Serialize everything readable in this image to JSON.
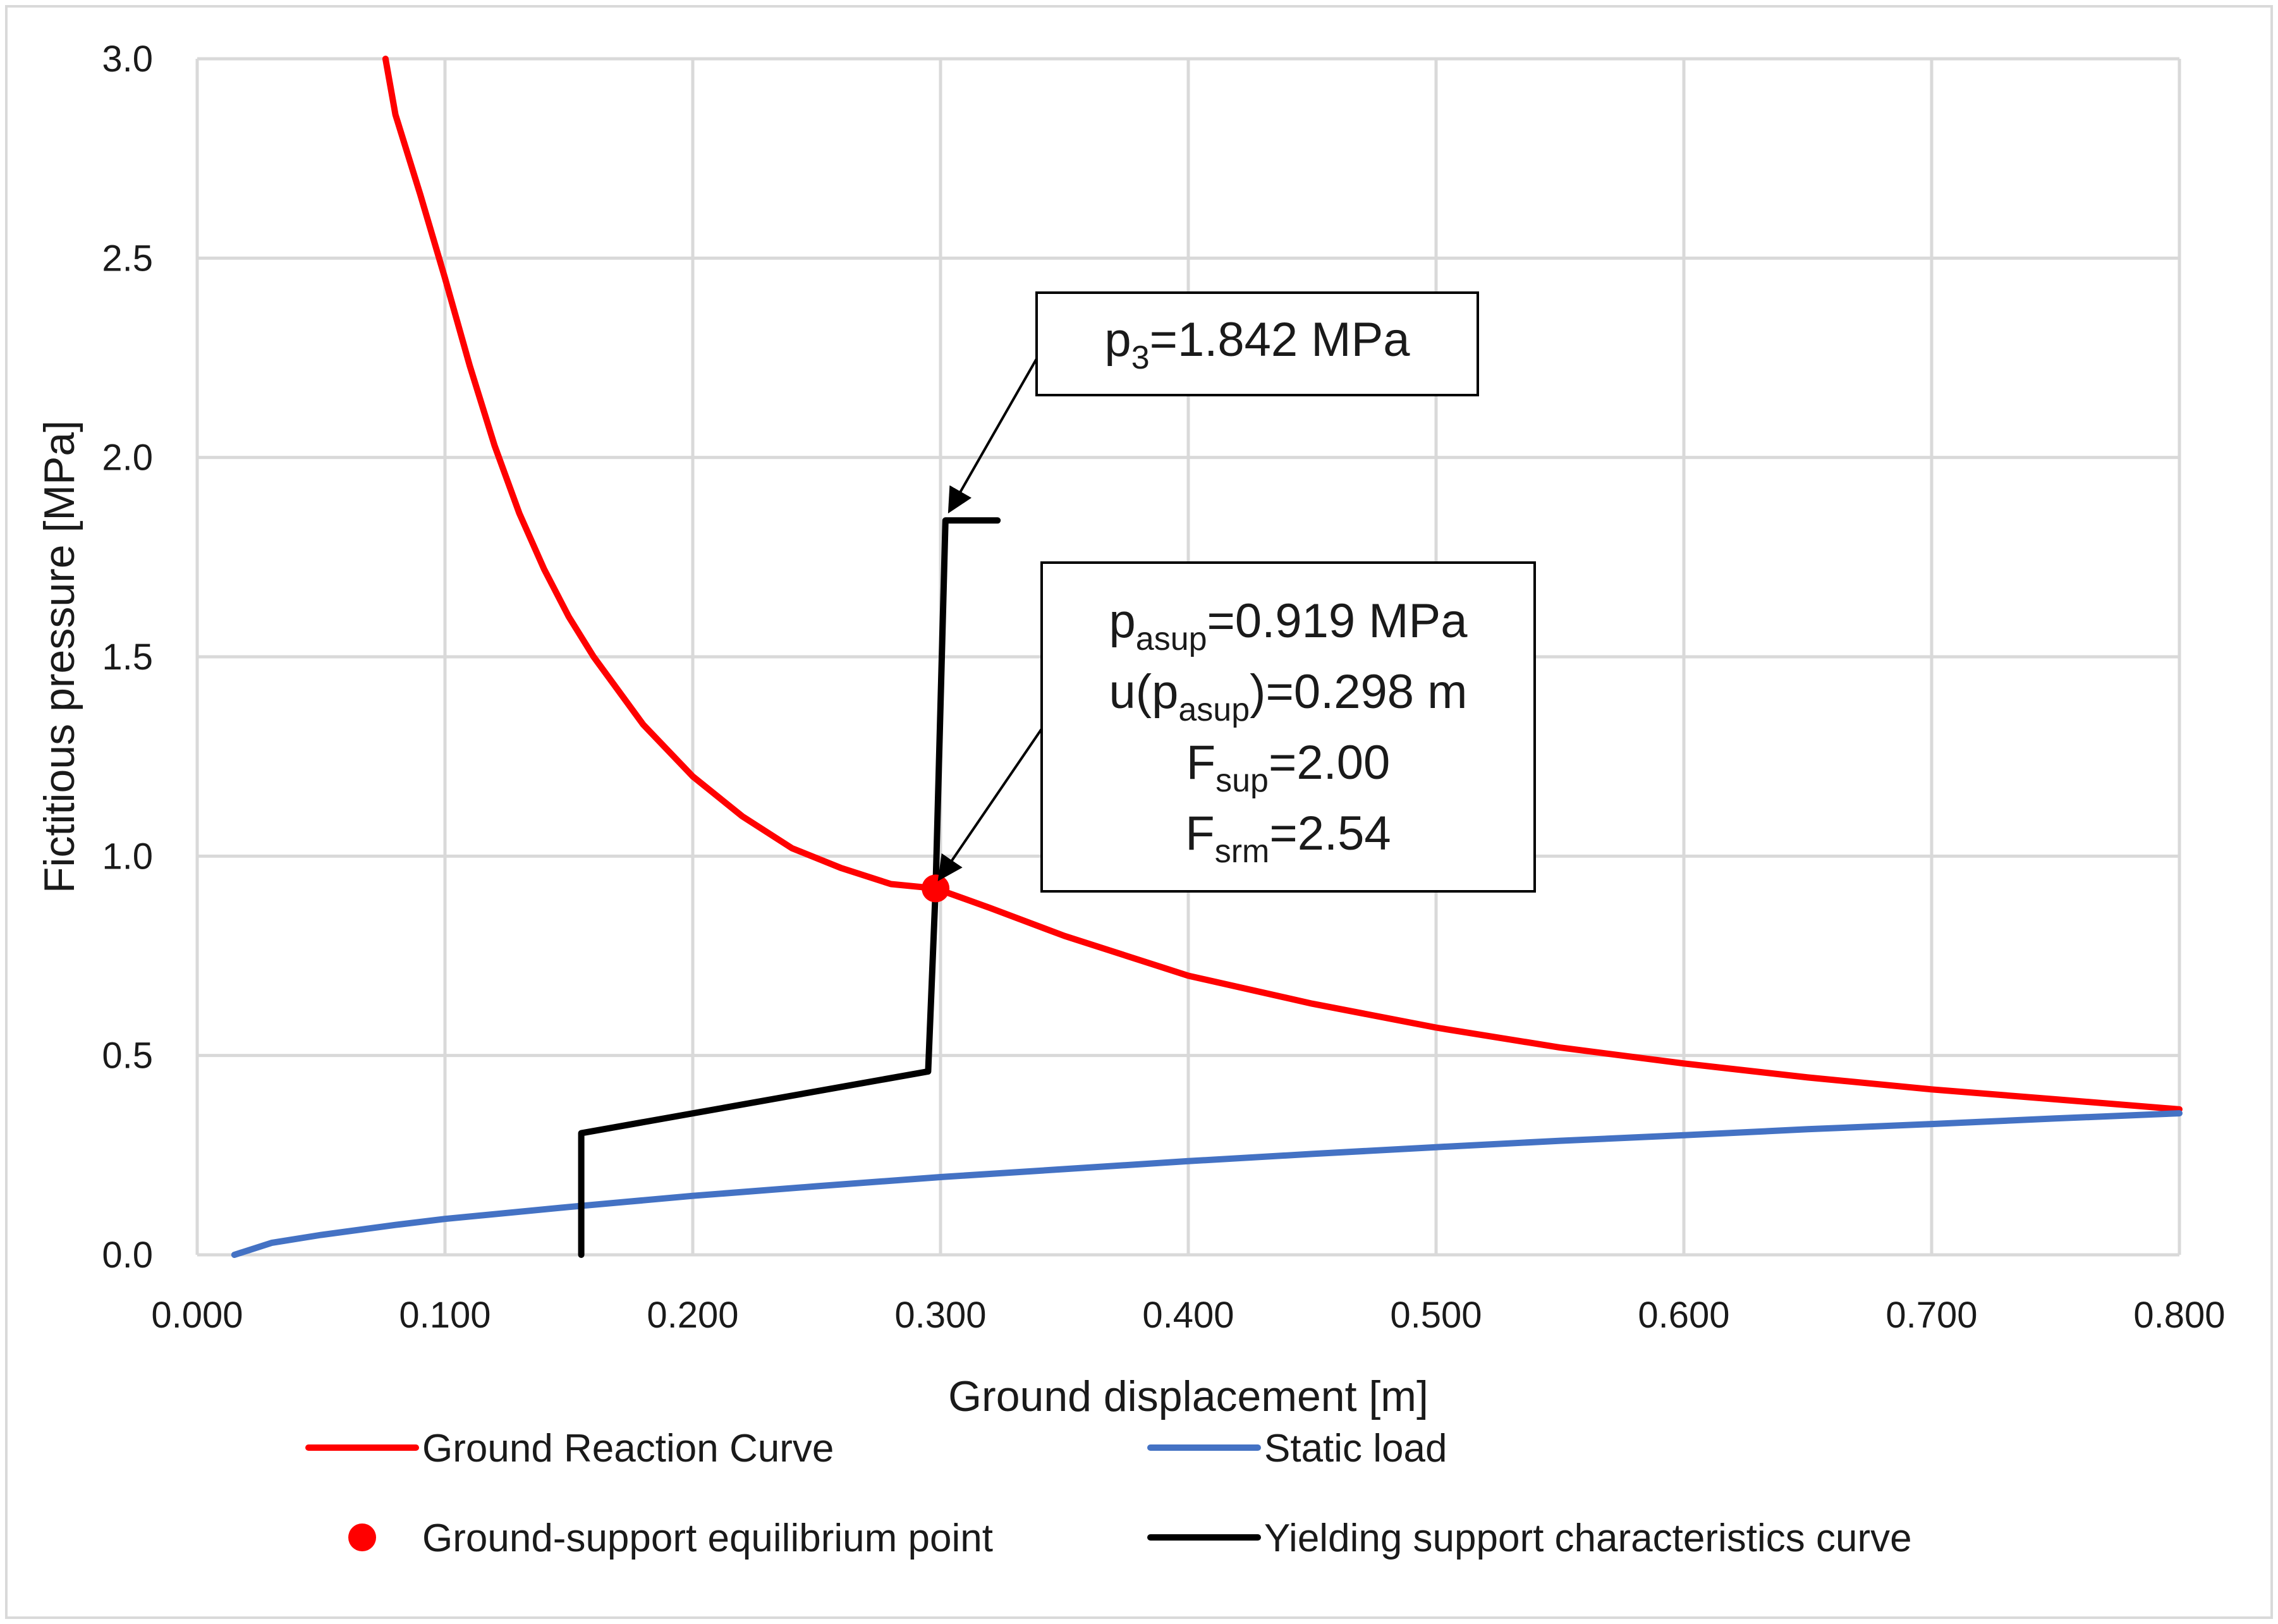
{
  "chart_data": {
    "type": "line",
    "title": "",
    "xlabel": "Ground displacement [m]",
    "ylabel": "Fictitious pressure [MPa]",
    "xlim": [
      0.0,
      0.8
    ],
    "ylim": [
      0.0,
      3.0
    ],
    "x_ticks": [
      "0.000",
      "0.100",
      "0.200",
      "0.300",
      "0.400",
      "0.500",
      "0.600",
      "0.700",
      "0.800"
    ],
    "y_ticks": [
      "0.0",
      "0.5",
      "1.0",
      "1.5",
      "2.0",
      "2.5",
      "3.0"
    ],
    "grid": true,
    "series": [
      {
        "name": "Ground Reaction Curve",
        "color": "#ff0000",
        "x": [
          0.076,
          0.08,
          0.09,
          0.1,
          0.11,
          0.12,
          0.13,
          0.14,
          0.15,
          0.16,
          0.18,
          0.2,
          0.22,
          0.24,
          0.26,
          0.28,
          0.298,
          0.32,
          0.35,
          0.4,
          0.45,
          0.5,
          0.55,
          0.6,
          0.65,
          0.7,
          0.75,
          0.8
        ],
        "y": [
          3.0,
          2.86,
          2.66,
          2.45,
          2.23,
          2.03,
          1.86,
          1.72,
          1.6,
          1.5,
          1.33,
          1.2,
          1.1,
          1.02,
          0.97,
          0.93,
          0.919,
          0.87,
          0.8,
          0.7,
          0.63,
          0.57,
          0.52,
          0.48,
          0.445,
          0.415,
          0.39,
          0.365
        ]
      },
      {
        "name": "Static load",
        "color": "#4472c4",
        "x": [
          0.015,
          0.03,
          0.05,
          0.08,
          0.1,
          0.15,
          0.2,
          0.25,
          0.3,
          0.35,
          0.4,
          0.45,
          0.5,
          0.55,
          0.6,
          0.65,
          0.7,
          0.75,
          0.8
        ],
        "y": [
          0.0,
          0.03,
          0.05,
          0.075,
          0.09,
          0.12,
          0.148,
          0.172,
          0.195,
          0.215,
          0.235,
          0.253,
          0.27,
          0.286,
          0.3,
          0.315,
          0.328,
          0.342,
          0.355
        ]
      },
      {
        "name": "Yielding support characteristics curve",
        "color": "#000000",
        "x": [
          0.155,
          0.155,
          0.295,
          0.298,
          0.302,
          0.323
        ],
        "y": [
          0.0,
          0.305,
          0.46,
          0.919,
          1.842,
          1.842
        ]
      }
    ],
    "points": [
      {
        "name": "Ground-support equilibrium point",
        "color": "#ff0000",
        "x": 0.298,
        "y": 0.919
      }
    ],
    "legend": {
      "placement": "bottom",
      "items": [
        {
          "label": "Ground Reaction Curve",
          "kind": "line",
          "color": "#ff0000"
        },
        {
          "label": "Static load",
          "kind": "line",
          "color": "#4472c4"
        },
        {
          "label": "Ground-support equilibrium point",
          "kind": "marker",
          "color": "#ff0000"
        },
        {
          "label": "Yielding support characteristics curve",
          "kind": "line",
          "color": "#000000"
        }
      ]
    },
    "annotations": [
      {
        "name": "p3",
        "lines": [
          {
            "main": "p",
            "sub": "3",
            "rest": "=1.842 MPa"
          }
        ],
        "target_x": 0.302,
        "target_y": 1.842
      },
      {
        "name": "equilibrium",
        "lines": [
          {
            "main": "p",
            "sub": "asup",
            "rest": "=0.919 MPa"
          },
          {
            "pre": "u(p",
            "sub": "asup",
            "rest": ")=0.298 m"
          },
          {
            "main": "F",
            "sub": "sup",
            "rest": "=2.00"
          },
          {
            "main": "F",
            "sub": "srm",
            "rest": "=2.54"
          }
        ],
        "target_x": 0.298,
        "target_y": 0.919
      }
    ]
  }
}
